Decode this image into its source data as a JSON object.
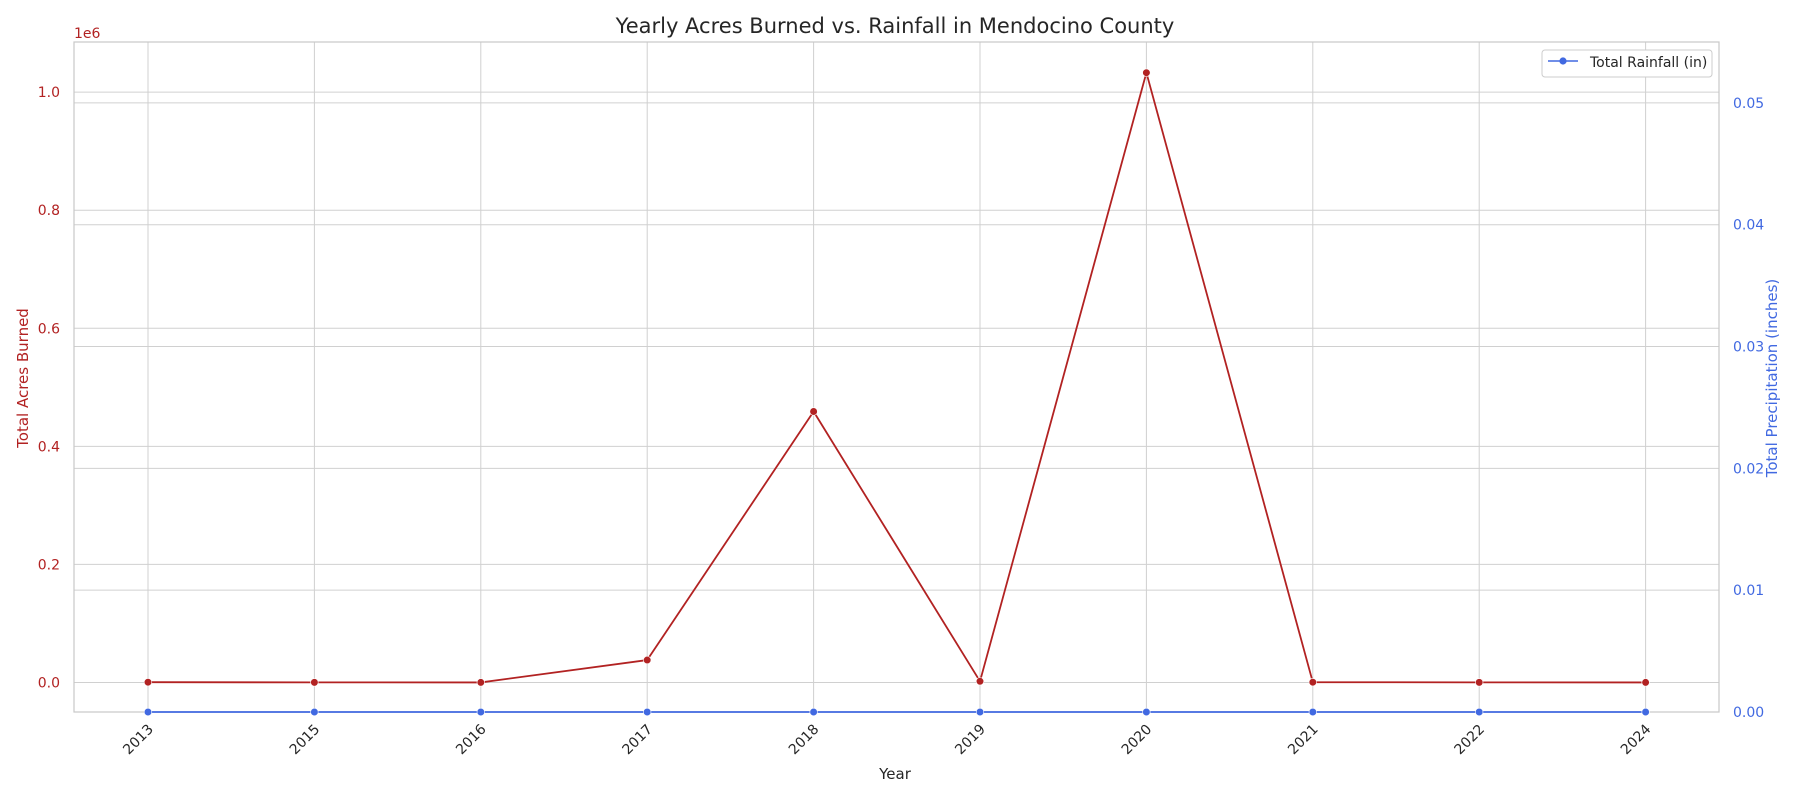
{
  "chart_data": {
    "type": "line",
    "title": "Yearly Acres Burned vs. Rainfall in Mendocino County",
    "xlabel": "Year",
    "categories": [
      "2013",
      "2015",
      "2016",
      "2017",
      "2018",
      "2019",
      "2020",
      "2021",
      "2022",
      "2024"
    ],
    "y_left": {
      "label": "Total Acres Burned",
      "offset_text": "1e6",
      "range": [
        -0.05,
        1.085
      ],
      "ticks": [
        0.0,
        0.2,
        0.4,
        0.6,
        0.8,
        1.0
      ],
      "tick_labels": [
        "0.0",
        "0.2",
        "0.4",
        "0.6",
        "0.8",
        "1.0"
      ],
      "color": "#b22222"
    },
    "y_right": {
      "label": "Total Precipitation (inches)",
      "range": [
        0.0,
        0.055
      ],
      "ticks": [
        0.0,
        0.01,
        0.02,
        0.03,
        0.04,
        0.05
      ],
      "tick_labels": [
        "0.00",
        "0.01",
        "0.02",
        "0.03",
        "0.04",
        "0.05"
      ],
      "color": "#4169e1"
    },
    "series": [
      {
        "axis": "left",
        "color": "#b22222",
        "values": [
          0.0005,
          0.0002,
          0.0001,
          0.038,
          0.459,
          0.002,
          1.033,
          0.0005,
          0.0002,
          0.0001
        ]
      },
      {
        "name": "Total Rainfall (in)",
        "axis": "right",
        "color": "#4169e1",
        "values": [
          0,
          0,
          0,
          0,
          0,
          0,
          0,
          0,
          0,
          0
        ]
      }
    ],
    "legend": {
      "placement": "top-right",
      "entries": [
        "Total Rainfall (in)"
      ]
    },
    "grid": true
  }
}
